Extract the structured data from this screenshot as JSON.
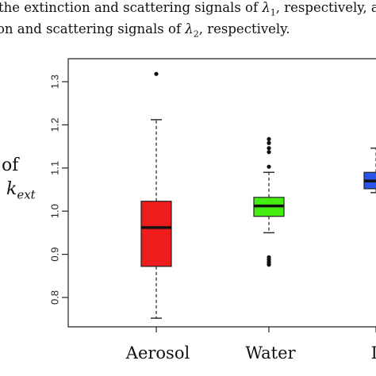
{
  "caption": {
    "line1_prefix": "the extinction and scattering signals of ",
    "line1_symbol": "λ",
    "line1_sub": "1",
    "line1_suffix": ", respectively, a",
    "line2_prefix": "on and scattering signals of ",
    "line2_symbol": "λ",
    "line2_sub": "2",
    "line2_suffix": ", respectively."
  },
  "ylabel": {
    "line1": "of",
    "line2_main": "k",
    "line2_sub": "ext"
  },
  "chart_data": {
    "type": "boxplot",
    "title": "",
    "xlabel": "",
    "ylabel": "of k_ext",
    "ylim": [
      0.74,
      1.34
    ],
    "yticks": [
      0.8,
      0.9,
      1.0,
      1.1,
      1.2,
      1.3
    ],
    "ytick_labels": [
      "0.8",
      "0.9",
      "1.0",
      "1.1",
      "1.2",
      "1.3"
    ],
    "grid": false,
    "categories": [
      "Aerosol",
      "Water",
      "D"
    ],
    "boxes": [
      {
        "category": "Aerosol",
        "color": "#ee1c1c",
        "whisker_low": 0.752,
        "q1": 0.872,
        "median": 0.962,
        "q3": 1.023,
        "whisker_high": 1.212,
        "outliers": [
          1.318
        ]
      },
      {
        "category": "Water",
        "color": "#44ee11",
        "whisker_low": 0.95,
        "q1": 0.988,
        "median": 1.012,
        "q3": 1.032,
        "whisker_high": 1.09,
        "outliers": [
          1.167,
          1.158,
          1.146,
          1.137,
          1.103,
          0.893,
          0.888,
          0.883,
          0.879,
          0.876
        ]
      },
      {
        "category": "D",
        "color": "#2b55e8",
        "whisker_low": 1.043,
        "q1": 1.052,
        "median": 1.07,
        "q3": 1.09,
        "whisker_high": 1.146,
        "outliers": []
      }
    ]
  }
}
